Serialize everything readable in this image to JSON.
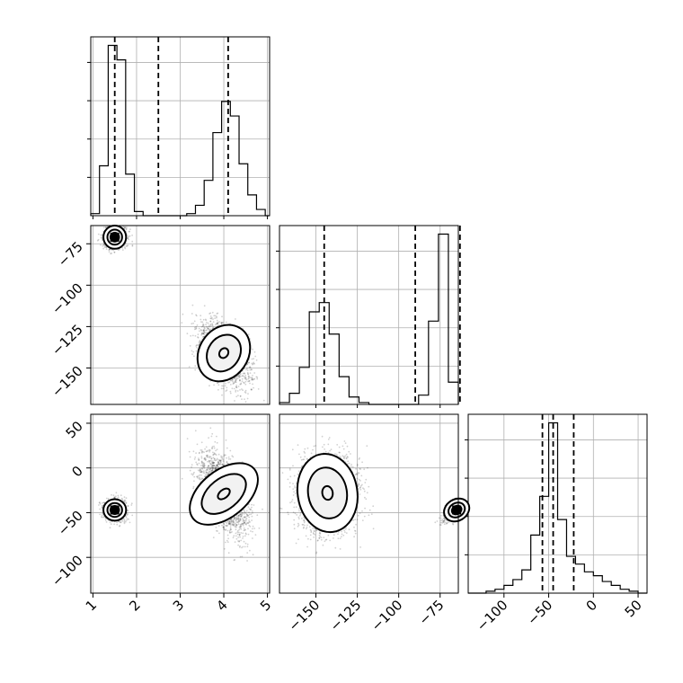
{
  "chart_data": {
    "type": "corner",
    "title": "",
    "parameters": [
      "",
      "",
      ""
    ],
    "grid": true,
    "axes": [
      {
        "range": [
          0.95,
          5.05
        ],
        "ticks": [
          1,
          2,
          3,
          4,
          5
        ],
        "tick_labels": [
          "1",
          "2",
          "3",
          "4",
          "5"
        ]
      },
      {
        "range": [
          -172,
          -64
        ],
        "ticks": [
          -150,
          -125,
          -100,
          -75
        ],
        "tick_labels": [
          "−150",
          "−125",
          "−100",
          "−75"
        ]
      },
      {
        "range": [
          -140,
          60
        ],
        "ticks": [
          -100,
          -50,
          0,
          50
        ],
        "tick_labels": [
          "−100",
          "−50",
          "0",
          "50"
        ]
      }
    ],
    "quantiles": [
      [
        1.5,
        2.5,
        4.1
      ],
      [
        -145,
        -90,
        -63
      ],
      [
        -57,
        -45,
        -22
      ]
    ],
    "histograms": [
      {
        "edges": [
          0.95,
          1.15,
          1.35,
          1.55,
          1.75,
          1.95,
          2.15,
          2.35,
          2.55,
          2.75,
          2.95,
          3.15,
          3.35,
          3.55,
          3.75,
          3.95,
          4.15,
          4.35,
          4.55,
          4.75,
          4.95,
          5.05
        ],
        "counts": [
          1,
          24,
          82,
          75,
          20,
          2,
          0,
          0,
          0,
          0,
          0,
          1,
          5,
          17,
          40,
          55,
          48,
          25,
          10,
          3,
          0
        ]
      },
      {
        "edges": [
          -172,
          -166,
          -160,
          -154,
          -148,
          -142,
          -136,
          -130,
          -124,
          -118,
          -112,
          -106,
          -100,
          -94,
          -88,
          -82,
          -76,
          -70,
          -64
        ],
        "counts": [
          1,
          6,
          20,
          50,
          55,
          38,
          15,
          4,
          1,
          0,
          0,
          0,
          0,
          0,
          5,
          45,
          92,
          12
        ]
      },
      {
        "edges": [
          -140,
          -130,
          -120,
          -110,
          -100,
          -90,
          -80,
          -70,
          -60,
          -50,
          -40,
          -30,
          -20,
          -10,
          0,
          10,
          20,
          30,
          40,
          50,
          60
        ],
        "counts": [
          0,
          0,
          1,
          2,
          4,
          7,
          12,
          30,
          50,
          88,
          38,
          19,
          15,
          11,
          9,
          6,
          4,
          2,
          1,
          0
        ]
      }
    ],
    "clusters": [
      {
        "pair": [
          0,
          1
        ],
        "modes": [
          {
            "center": [
              1.5,
              -71
            ],
            "spread": [
              0.13,
              3.5
            ],
            "corr": 0.0,
            "n": 900
          },
          {
            "center": [
              4.0,
              -141
            ],
            "spread": [
              0.28,
              9
            ],
            "corr": -0.45,
            "n": 2200
          }
        ]
      },
      {
        "pair": [
          0,
          2
        ],
        "modes": [
          {
            "center": [
              1.5,
              -47
            ],
            "spread": [
              0.13,
              6
            ],
            "corr": 0.0,
            "n": 900
          },
          {
            "center": [
              4.0,
              -29
            ],
            "spread": [
              0.27,
              22
            ],
            "corr": -0.55,
            "n": 2200
          }
        ]
      },
      {
        "pair": [
          1,
          2
        ],
        "modes": [
          {
            "center": [
              -143,
              -28
            ],
            "spread": [
              9,
              22
            ],
            "corr": 0.1,
            "n": 2200
          },
          {
            "center": [
              -65,
              -47
            ],
            "spread": [
              4,
              6
            ],
            "corr": 0.6,
            "n": 900
          }
        ]
      }
    ]
  }
}
